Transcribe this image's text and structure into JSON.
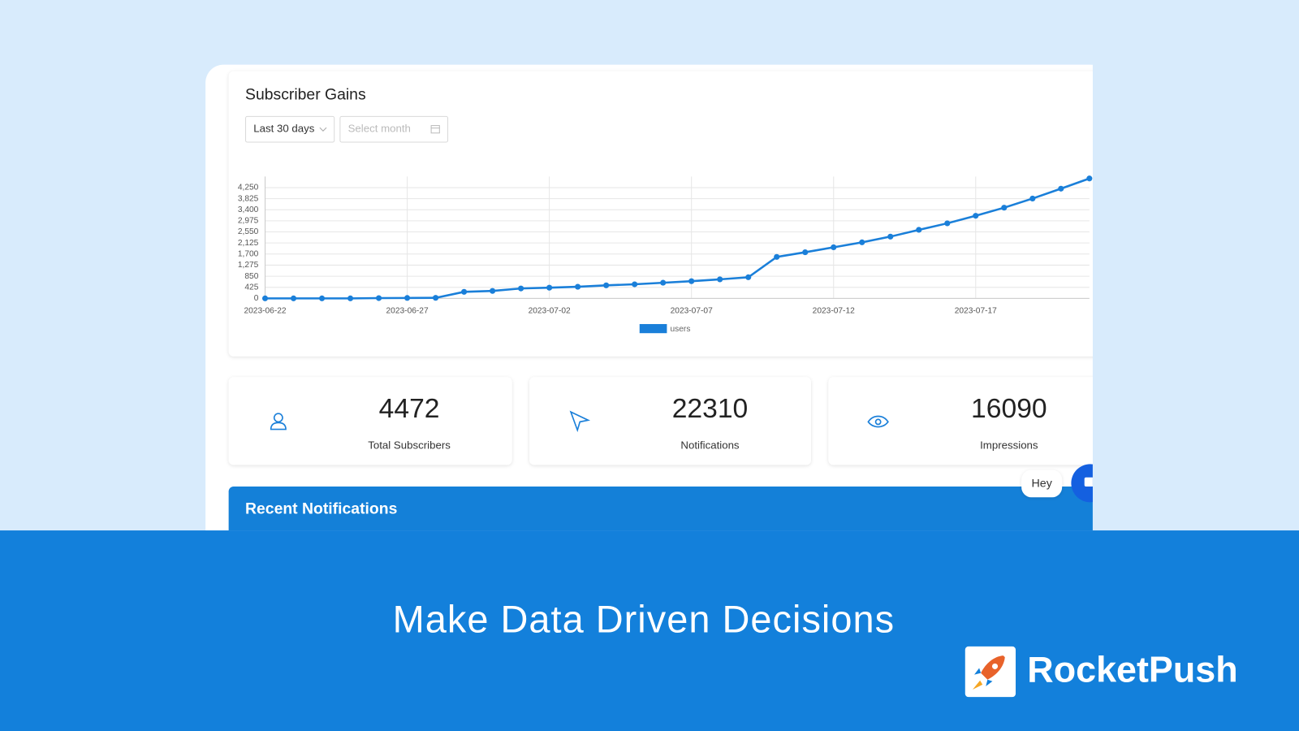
{
  "header": {
    "title": "Subscriber Gains",
    "range_select": "Last 30 days",
    "month_placeholder": "Select month"
  },
  "chart_data": {
    "type": "line",
    "categories": [
      "2023-06-22",
      null,
      null,
      null,
      null,
      "2023-06-27",
      null,
      null,
      null,
      null,
      "2023-07-02",
      null,
      null,
      null,
      null,
      "2023-07-07",
      null,
      null,
      null,
      null,
      "2023-07-12",
      null,
      null,
      null,
      null,
      "2023-07-17",
      null,
      null,
      null,
      null
    ],
    "series": [
      {
        "name": "users",
        "color": "#1a7fd9",
        "values": [
          0,
          0,
          0,
          0,
          10,
          15,
          20,
          250,
          285,
          380,
          410,
          445,
          500,
          540,
          600,
          660,
          730,
          810,
          1590,
          1770,
          1960,
          2150,
          2370,
          2630,
          2880,
          3170,
          3480,
          3830,
          4210,
          4600
        ]
      }
    ],
    "ylim": [
      0,
      4675
    ],
    "yticks": [
      0,
      425,
      850,
      {
        "value": 1275,
        "label": "1,275"
      },
      {
        "value": 1700,
        "label": "1,700"
      },
      {
        "value": 2125,
        "label": "2,125"
      },
      {
        "value": 2550,
        "label": "2,550"
      },
      {
        "value": 2975,
        "label": "2,975"
      },
      {
        "value": 3400,
        "label": "3,400"
      },
      {
        "value": 3825,
        "label": "3,825"
      },
      {
        "value": 4250,
        "label": "4,250"
      }
    ],
    "grid": true
  },
  "stats": [
    {
      "value": 4472,
      "label": "Total Subscribers"
    },
    {
      "value": 22310,
      "label": "Notifications"
    },
    {
      "value": 16090,
      "label": "Impressions"
    }
  ],
  "recent": {
    "title": "Recent Notifications"
  },
  "chat": {
    "bubble": "Hey"
  },
  "banner": {
    "tagline": "Make Data Driven Decisions",
    "brand": "RocketPush"
  }
}
